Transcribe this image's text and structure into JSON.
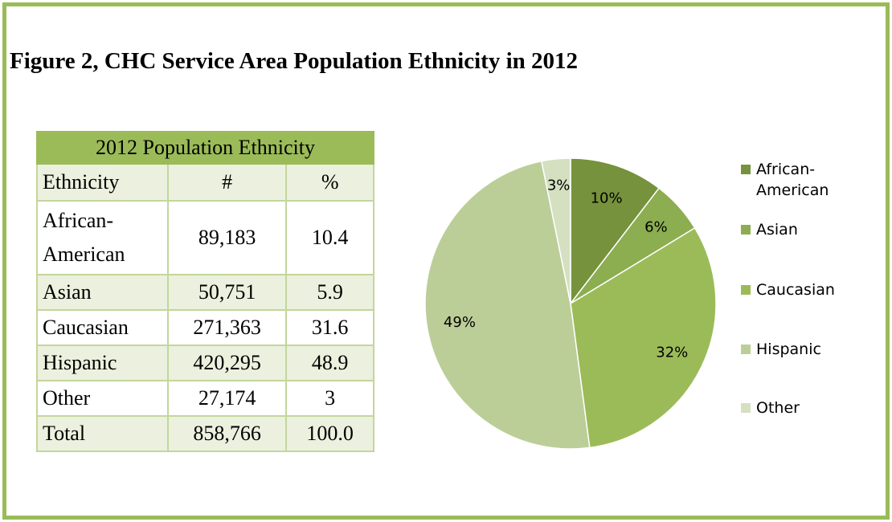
{
  "figure_title": "Figure 2, CHC Service Area Population Ethnicity in 2012",
  "table": {
    "title": "2012 Population Ethnicity",
    "headers": [
      "Ethnicity",
      "#",
      "%"
    ],
    "rows": [
      {
        "name": "African-American",
        "count": "89,183",
        "pct": "10.4"
      },
      {
        "name": "Asian",
        "count": "50,751",
        "pct": "5.9"
      },
      {
        "name": "Caucasian",
        "count": "271,363",
        "pct": "31.6"
      },
      {
        "name": "Hispanic",
        "count": "420,295",
        "pct": "48.9"
      },
      {
        "name": "Other",
        "count": "27,174",
        "pct": "3"
      },
      {
        "name": "Total",
        "count": "858,766",
        "pct": "100.0"
      }
    ]
  },
  "chart_data": {
    "type": "pie",
    "title": "",
    "categories": [
      "African-American",
      "Asian",
      "Caucasian",
      "Hispanic",
      "Other"
    ],
    "values": [
      10.4,
      5.9,
      31.6,
      48.9,
      3.2
    ],
    "data_labels": [
      "10%",
      "6%",
      "32%",
      "49%",
      "3%"
    ],
    "legend_labels": [
      [
        "African-",
        "American"
      ],
      [
        "Asian"
      ],
      [
        "Caucasian"
      ],
      [
        "Hispanic"
      ],
      [
        "Other"
      ]
    ],
    "colors": [
      "#76923c",
      "#8cad50",
      "#9bbb59",
      "#bcce98",
      "#d4e0c0"
    ],
    "legend_position": "right"
  },
  "colors": {
    "frame_border": "#9bbb59",
    "table_title_bg": "#9bbb59",
    "table_alt_bg": "#ebf1de",
    "table_border": "#c3d69b"
  }
}
